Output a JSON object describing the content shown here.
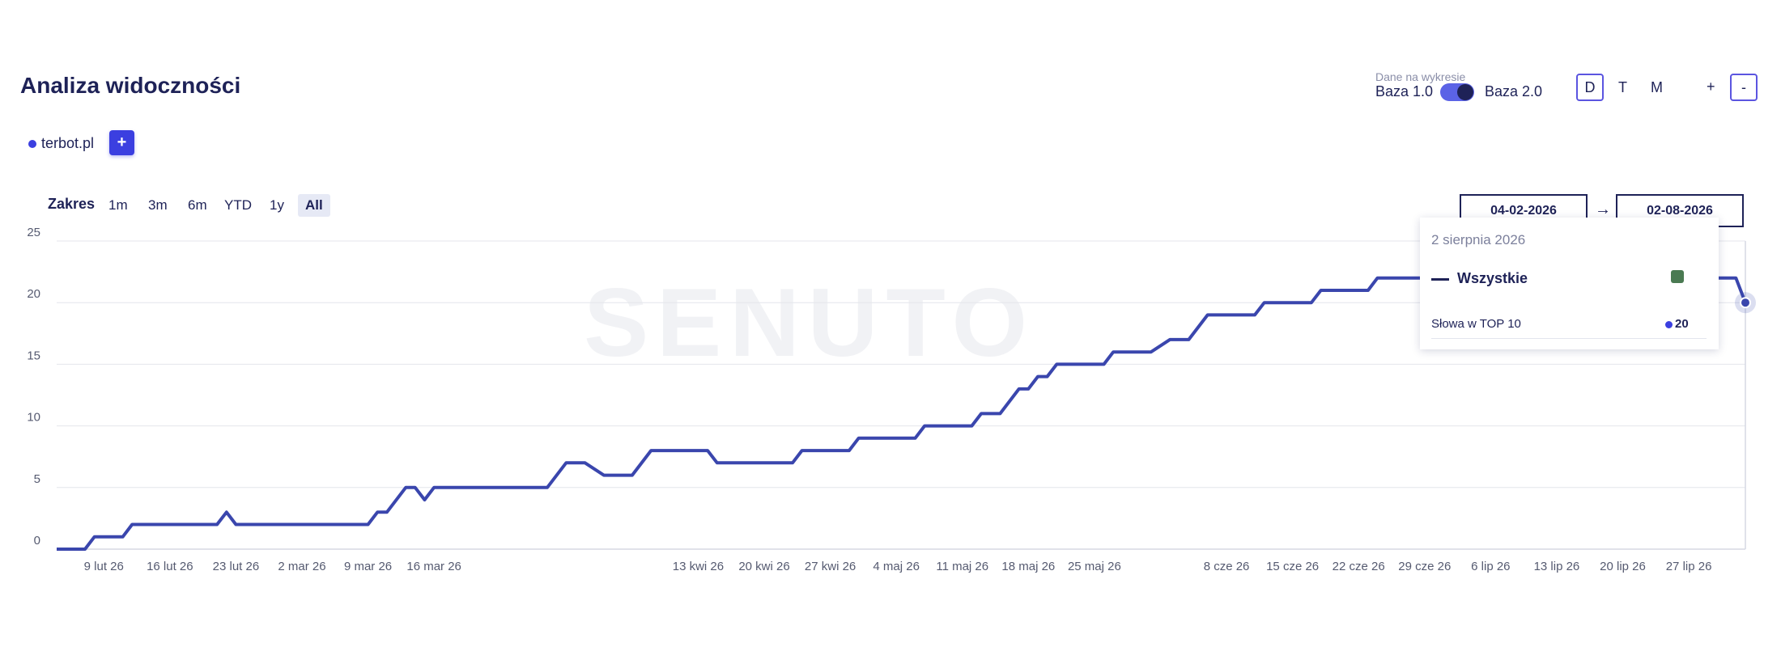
{
  "header": {
    "data_label": "Dane na wykresie",
    "base_options": [
      "Baza 1.0",
      "Baza 2.0"
    ],
    "granularity": [
      "D",
      "T",
      "M"
    ],
    "zoom": [
      "+",
      "-"
    ]
  },
  "domains": {
    "items": [
      "terbot.pl"
    ],
    "add": "+"
  },
  "range": {
    "label": "Zakres",
    "options": [
      "1m",
      "3m",
      "6m",
      "YTD",
      "1y",
      "All"
    ]
  },
  "date_range": {
    "from": "04-02-2026",
    "arrow": "→",
    "to": "02-08-2026"
  },
  "watermark": "SENUTO",
  "tooltip": {
    "date": "2 sierpnia 2026",
    "metric": "Słowa w TOP 10"
  },
  "chart_data": {
    "type": "line",
    "title": "Analiza widoczności",
    "x": [
      "2026-02-04",
      "2026-02-07",
      "2026-02-08",
      "2026-02-11",
      "2026-02-12",
      "2026-02-21",
      "2026-02-22",
      "2026-02-23",
      "2026-03-09",
      "2026-03-10",
      "2026-03-11",
      "2026-03-13",
      "2026-03-14",
      "2026-03-15",
      "2026-03-16",
      "2026-03-28",
      "2026-03-30",
      "2026-04-01",
      "2026-04-03",
      "2026-04-06",
      "2026-04-08",
      "2026-04-14",
      "2026-04-15",
      "2026-04-23",
      "2026-04-24",
      "2026-04-29",
      "2026-04-30",
      "2026-05-06",
      "2026-05-07",
      "2026-05-12",
      "2026-05-13",
      "2026-05-15",
      "2026-05-17",
      "2026-05-18",
      "2026-05-19",
      "2026-05-20",
      "2026-05-21",
      "2026-05-26",
      "2026-05-27",
      "2026-05-31",
      "2026-06-02",
      "2026-06-04",
      "2026-06-06",
      "2026-06-11",
      "2026-06-12",
      "2026-06-17",
      "2026-06-18",
      "2026-06-23",
      "2026-06-24",
      "2026-08-01",
      "2026-08-02"
    ],
    "series": [
      {
        "name": "Wszystkie",
        "color": "#3a46ad",
        "values": [
          0,
          0,
          1,
          1,
          2,
          2,
          3,
          2,
          2,
          3,
          3,
          5,
          5,
          4,
          5,
          5,
          7,
          7,
          6,
          6,
          8,
          8,
          7,
          7,
          8,
          8,
          9,
          9,
          10,
          10,
          11,
          11,
          13,
          13,
          14,
          14,
          15,
          15,
          16,
          16,
          17,
          17,
          19,
          19,
          20,
          20,
          21,
          21,
          22,
          22,
          20
        ]
      }
    ],
    "xlim": [
      "2026-02-04",
      "2026-08-02"
    ],
    "xticks": [
      {
        "value": "2026-02-09",
        "label": "9 lut 26"
      },
      {
        "value": "2026-02-16",
        "label": "16 lut 26"
      },
      {
        "value": "2026-02-23",
        "label": "23 lut 26"
      },
      {
        "value": "2026-03-02",
        "label": "2 mar 26"
      },
      {
        "value": "2026-03-09",
        "label": "9 mar 26"
      },
      {
        "value": "2026-03-16",
        "label": "16 mar 26"
      },
      {
        "value": "2026-04-13",
        "label": "13 kwi 26"
      },
      {
        "value": "2026-04-20",
        "label": "20 kwi 26"
      },
      {
        "value": "2026-04-27",
        "label": "27 kwi 26"
      },
      {
        "value": "2026-05-04",
        "label": "4 maj 26"
      },
      {
        "value": "2026-05-11",
        "label": "11 maj 26"
      },
      {
        "value": "2026-05-18",
        "label": "18 maj 26"
      },
      {
        "value": "2026-05-25",
        "label": "25 maj 26"
      },
      {
        "value": "2026-06-08",
        "label": "8 cze 26"
      },
      {
        "value": "2026-06-15",
        "label": "15 cze 26"
      },
      {
        "value": "2026-06-22",
        "label": "22 cze 26"
      },
      {
        "value": "2026-06-29",
        "label": "29 cze 26"
      },
      {
        "value": "2026-07-06",
        "label": "6 lip 26"
      },
      {
        "value": "2026-07-13",
        "label": "13 lip 26"
      },
      {
        "value": "2026-07-20",
        "label": "20 lip 26"
      },
      {
        "value": "2026-07-27",
        "label": "27 lip 26"
      }
    ],
    "ylim": [
      0,
      25
    ],
    "yticks": [
      0,
      5,
      10,
      15,
      20,
      25
    ],
    "grid": true
  }
}
